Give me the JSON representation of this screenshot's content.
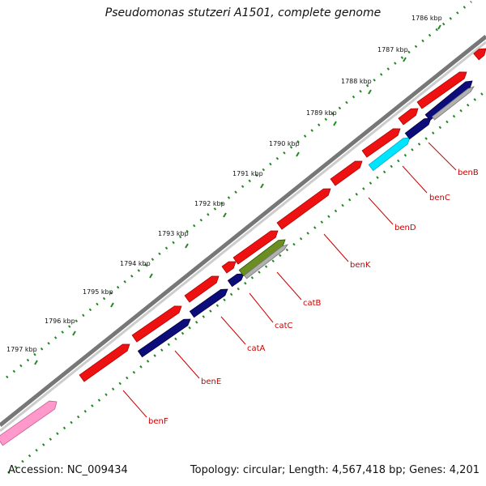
{
  "title": "Pseudomonas stutzeri A1501, complete genome",
  "footer": {
    "accession": "Accession: NC_009434",
    "summary": "Topology: circular; Length: 4,567,418 bp; Genes: 4,201"
  },
  "ticks": [
    "1786 kbp",
    "1787 kbp",
    "1788 kbp",
    "1789 kbp",
    "1790 kbp",
    "1791 kbp",
    "1792 kbp",
    "1793 kbp",
    "1794 kbp",
    "1795 kbp",
    "1796 kbp",
    "1797 kbp"
  ],
  "genes": [
    "benB",
    "benC",
    "benD",
    "benK",
    "catB",
    "catC",
    "catA",
    "benE",
    "benF"
  ],
  "colors": {
    "backbone": "#777777",
    "forward": "#ee1111",
    "reverse": "#0c0c7a",
    "tick": "#228822",
    "label": "#cc0000",
    "pink": "#ff99cc",
    "cyan": "#00e5ff",
    "olive": "#6b8e23",
    "gray": "#b0b0b0"
  }
}
